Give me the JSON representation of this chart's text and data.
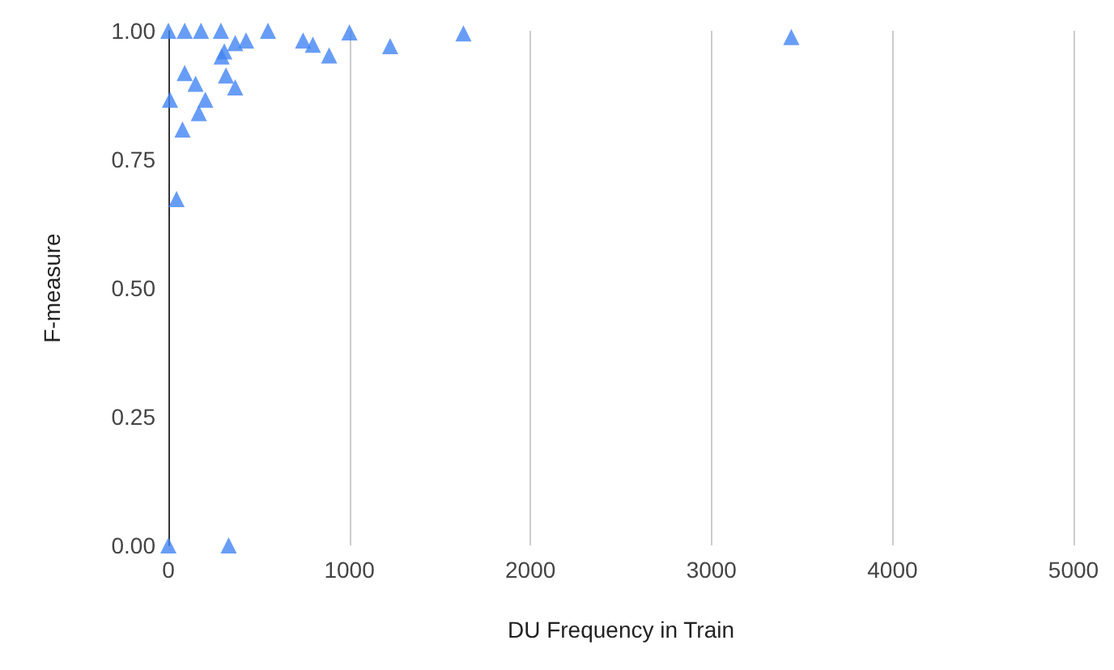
{
  "chart_data": {
    "type": "scatter",
    "xlabel": "DU Frequency in Train",
    "ylabel": "F-measure",
    "marker": "triangle",
    "grid": "x",
    "xlim": [
      0,
      5000
    ],
    "xticks": [
      0,
      1000,
      2000,
      3000,
      4000,
      5000
    ],
    "ylim": [
      0,
      1
    ],
    "yticks": [
      {
        "value": 0,
        "label": "0.00"
      },
      {
        "value": 0.25,
        "label": "0.25"
      },
      {
        "value": 0.5,
        "label": "0.50"
      },
      {
        "value": 0.75,
        "label": "0.75"
      },
      {
        "value": 1,
        "label": "1.00"
      }
    ],
    "series": [
      {
        "color": "#4285f4",
        "x": [
          0,
          90,
          180,
          290,
          550,
          9,
          45,
          90,
          150,
          204,
          168,
          78,
          318,
          369,
          309,
          294,
          369,
          429,
          744,
          798,
          888,
          1000,
          1225,
          1630,
          3441,
          0,
          333
        ],
        "values": [
          1,
          1,
          1,
          1,
          1,
          0.866,
          0.673,
          0.918,
          0.897,
          0.866,
          0.84,
          0.808,
          0.913,
          0.89,
          0.96,
          0.95,
          0.976,
          0.981,
          0.981,
          0.973,
          0.952,
          0.997,
          0.97,
          0.995,
          0.988,
          0,
          0
        ]
      }
    ]
  }
}
